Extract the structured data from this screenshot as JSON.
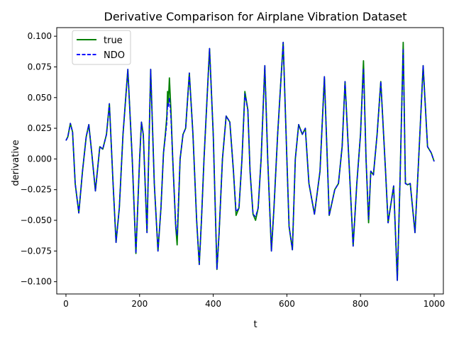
{
  "chart_data": {
    "type": "line",
    "title": "Derivative Comparison for Airplane Vibration Dataset",
    "xlabel": "t",
    "ylabel": "derivative",
    "xlim": [
      -25,
      1025
    ],
    "ylim": [
      -0.11,
      0.107
    ],
    "xticks": [
      0,
      200,
      400,
      600,
      800,
      1000
    ],
    "xtick_labels": [
      "0",
      "200",
      "400",
      "600",
      "800",
      "1000"
    ],
    "yticks": [
      -0.1,
      -0.075,
      -0.05,
      -0.025,
      0.0,
      0.025,
      0.05,
      0.075,
      0.1
    ],
    "ytick_labels": [
      "−0.100",
      "−0.075",
      "−0.050",
      "−0.025",
      "0.000",
      "0.025",
      "0.050",
      "0.075",
      "0.100"
    ],
    "grid": false,
    "legend_position": "upper-left",
    "series": [
      {
        "name": "true",
        "color": "#008000",
        "style": "solid",
        "x": [
          0,
          5,
          12,
          18,
          25,
          35,
          45,
          55,
          62,
          70,
          80,
          92,
          100,
          110,
          118,
          128,
          136,
          145,
          155,
          168,
          180,
          190,
          200,
          205,
          210,
          215,
          220,
          230,
          240,
          250,
          258,
          265,
          270,
          274,
          276,
          278,
          281,
          285,
          290,
          298,
          302,
          310,
          318,
          325,
          335,
          345,
          355,
          362,
          368,
          375,
          390,
          400,
          410,
          416,
          425,
          435,
          445,
          455,
          462,
          470,
          478,
          486,
          494,
          500,
          508,
          515,
          522,
          530,
          540,
          548,
          558,
          565,
          575,
          590,
          600,
          606,
          615,
          623,
          632,
          642,
          650,
          660,
          675,
          690,
          702,
          715,
          730,
          740,
          750,
          758,
          770,
          780,
          790,
          800,
          808,
          815,
          822,
          828,
          835,
          845,
          855,
          868,
          875,
          890,
          900,
          907,
          916,
          922,
          928,
          935,
          948,
          958,
          970,
          982,
          992,
          1000
        ],
        "y": [
          0.015,
          0.018,
          0.029,
          0.022,
          -0.02,
          -0.044,
          -0.01,
          0.018,
          0.028,
          0.005,
          -0.026,
          0.01,
          0.008,
          0.02,
          0.045,
          -0.02,
          -0.068,
          -0.04,
          0.02,
          0.073,
          0.0,
          -0.077,
          0.0,
          0.03,
          0.02,
          -0.02,
          -0.06,
          0.073,
          -0.02,
          -0.075,
          -0.04,
          0.005,
          0.02,
          0.035,
          0.055,
          0.045,
          0.066,
          0.04,
          0.0,
          -0.055,
          -0.07,
          0.0,
          0.02,
          0.025,
          0.07,
          0.02,
          -0.05,
          -0.086,
          -0.05,
          0.0,
          0.09,
          0.02,
          -0.09,
          -0.06,
          0.0,
          0.035,
          0.03,
          -0.01,
          -0.046,
          -0.04,
          0.0,
          0.055,
          0.04,
          -0.01,
          -0.045,
          -0.05,
          -0.04,
          0.0,
          0.076,
          0.0,
          -0.075,
          -0.04,
          0.02,
          0.095,
          0.0,
          -0.055,
          -0.074,
          0.0,
          0.028,
          0.02,
          0.025,
          -0.02,
          -0.045,
          -0.01,
          0.067,
          -0.046,
          -0.025,
          -0.02,
          0.01,
          0.063,
          -0.01,
          -0.071,
          -0.02,
          0.02,
          0.08,
          0.0,
          -0.052,
          -0.01,
          -0.013,
          0.02,
          0.063,
          -0.01,
          -0.052,
          -0.022,
          -0.099,
          -0.02,
          0.095,
          -0.02,
          -0.021,
          -0.02,
          -0.06,
          0.0,
          0.076,
          0.01,
          0.005,
          -0.002
        ]
      },
      {
        "name": "NDO",
        "color": "#0000ff",
        "style": "dashed",
        "x": [
          0,
          5,
          12,
          18,
          25,
          35,
          45,
          55,
          62,
          70,
          80,
          92,
          100,
          110,
          118,
          128,
          136,
          145,
          155,
          168,
          180,
          190,
          200,
          205,
          210,
          215,
          220,
          230,
          240,
          250,
          258,
          265,
          270,
          274,
          276,
          278,
          281,
          285,
          290,
          298,
          302,
          310,
          318,
          325,
          335,
          345,
          355,
          362,
          368,
          375,
          390,
          400,
          410,
          416,
          425,
          435,
          445,
          455,
          462,
          470,
          478,
          486,
          494,
          500,
          508,
          515,
          522,
          530,
          540,
          548,
          558,
          565,
          575,
          590,
          600,
          606,
          615,
          623,
          632,
          642,
          650,
          660,
          675,
          690,
          702,
          715,
          730,
          740,
          750,
          758,
          770,
          780,
          790,
          800,
          808,
          815,
          822,
          828,
          835,
          845,
          855,
          868,
          875,
          890,
          900,
          907,
          916,
          922,
          928,
          935,
          948,
          958,
          970,
          982,
          992,
          1000
        ],
        "y": [
          0.015,
          0.018,
          0.029,
          0.022,
          -0.02,
          -0.044,
          -0.01,
          0.018,
          0.028,
          0.005,
          -0.026,
          0.01,
          0.008,
          0.02,
          0.045,
          -0.02,
          -0.068,
          -0.04,
          0.02,
          0.073,
          0.0,
          -0.077,
          0.0,
          0.03,
          0.02,
          -0.02,
          -0.06,
          0.073,
          -0.02,
          -0.075,
          -0.04,
          0.005,
          0.018,
          0.03,
          0.045,
          0.042,
          0.05,
          0.035,
          0.0,
          -0.055,
          -0.062,
          0.0,
          0.02,
          0.025,
          0.07,
          0.02,
          -0.05,
          -0.086,
          -0.05,
          0.0,
          0.09,
          0.02,
          -0.09,
          -0.06,
          0.0,
          0.035,
          0.03,
          -0.01,
          -0.043,
          -0.04,
          0.0,
          0.053,
          0.04,
          -0.01,
          -0.045,
          -0.047,
          -0.04,
          0.0,
          0.076,
          0.0,
          -0.075,
          -0.04,
          0.02,
          0.095,
          0.0,
          -0.055,
          -0.074,
          0.0,
          0.028,
          0.02,
          0.025,
          -0.02,
          -0.045,
          -0.01,
          0.067,
          -0.046,
          -0.025,
          -0.02,
          0.01,
          0.063,
          -0.01,
          -0.071,
          -0.02,
          0.02,
          0.074,
          0.0,
          -0.049,
          -0.01,
          -0.013,
          0.02,
          0.063,
          -0.01,
          -0.052,
          -0.022,
          -0.099,
          -0.02,
          0.09,
          -0.02,
          -0.021,
          -0.02,
          -0.06,
          0.0,
          0.076,
          0.01,
          0.005,
          -0.002
        ]
      }
    ]
  }
}
